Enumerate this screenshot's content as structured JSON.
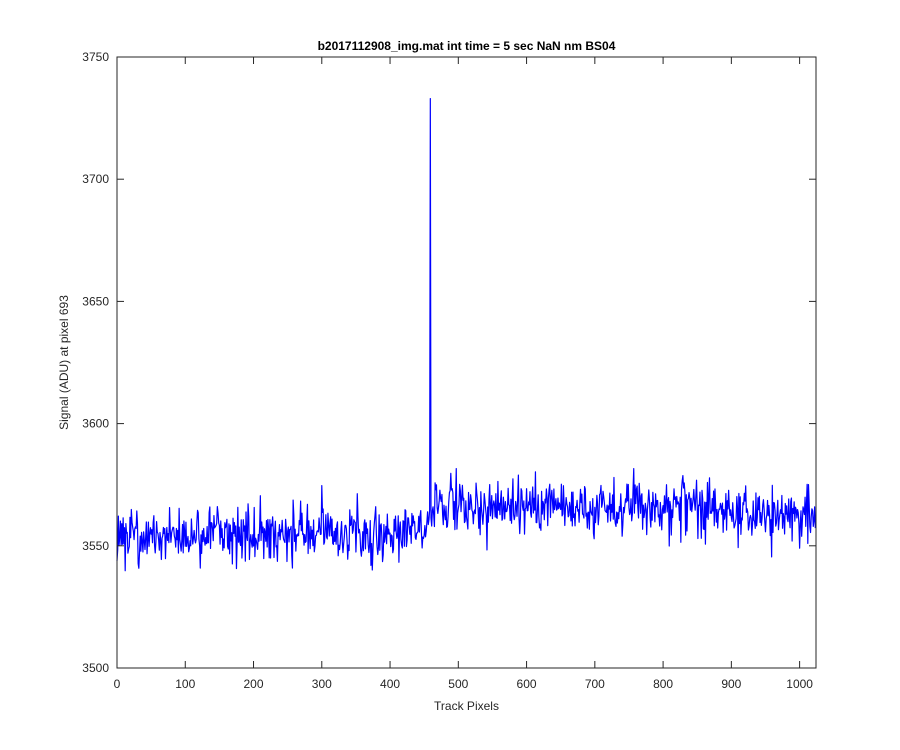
{
  "chart_data": {
    "type": "line",
    "title": "b2017112908_img.mat int time = 5 sec  NaN nm BS04",
    "xlabel": "Track Pixels",
    "ylabel": "Signal (ADU) at pixel 693",
    "xlim": [
      0,
      1024
    ],
    "ylim": [
      3500,
      3750
    ],
    "xticks": [
      0,
      100,
      200,
      300,
      400,
      500,
      600,
      700,
      800,
      900,
      1000
    ],
    "yticks": [
      3500,
      3550,
      3600,
      3650,
      3700,
      3750
    ],
    "grid": false,
    "legend": "none",
    "line_color": "#0000ff",
    "series": [
      {
        "x_start": 0,
        "x_step": 1,
        "n_points": 1024,
        "baseline_start": 3554,
        "baseline_end": 3562,
        "baseline_mid_value": 3566,
        "noise_amplitude": 12,
        "spike": {
          "x": 459,
          "y": 3733
        },
        "min_observed": 3529,
        "max_observed_excluding_spike": 3594
      }
    ]
  }
}
